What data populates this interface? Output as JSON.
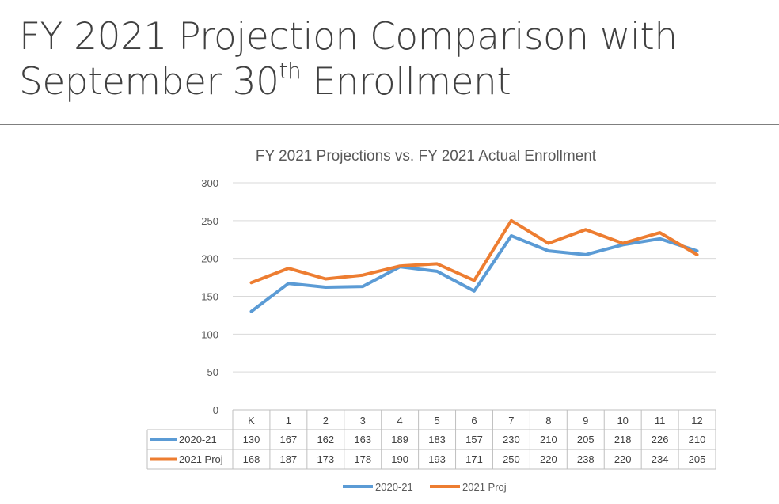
{
  "slide": {
    "title_line1": "FY 2021 Projection Comparison with",
    "title_line2_main": "September 30",
    "title_line2_sup": "th",
    "title_line2_end": " Enrollment"
  },
  "chart_data": {
    "type": "line",
    "title": "FY 2021 Projections vs. FY 2021 Actual Enrollment",
    "categories": [
      "K",
      "1",
      "2",
      "3",
      "4",
      "5",
      "6",
      "7",
      "8",
      "9",
      "10",
      "11",
      "12"
    ],
    "series": [
      {
        "name": "2020-21",
        "color": "#5b9bd5",
        "values": [
          130,
          167,
          162,
          163,
          189,
          183,
          157,
          230,
          210,
          205,
          218,
          226,
          210
        ]
      },
      {
        "name": "2021 Proj",
        "color": "#ed7d31",
        "values": [
          168,
          187,
          173,
          178,
          190,
          193,
          171,
          250,
          220,
          238,
          220,
          234,
          205
        ]
      }
    ],
    "ylim": [
      0,
      300
    ],
    "yticks": [
      0,
      50,
      100,
      150,
      200,
      250,
      300
    ],
    "grid": true,
    "data_table": true,
    "legend_position": "bottom"
  }
}
